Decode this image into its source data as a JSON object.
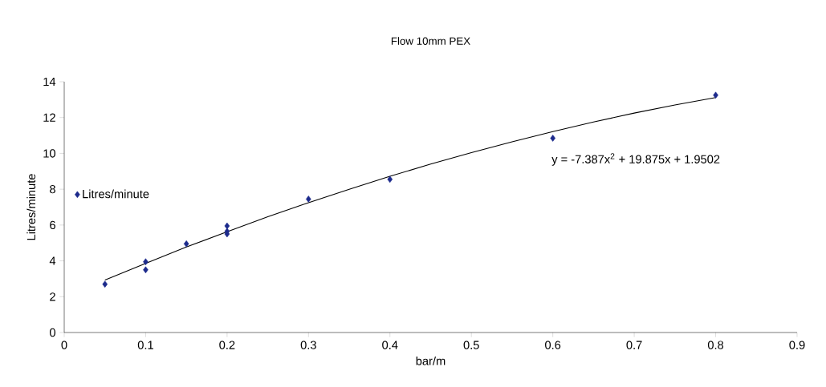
{
  "chart_data": {
    "type": "scatter",
    "title": "Flow 10mm PEX",
    "xlabel": "bar/m",
    "ylabel": "Litres/minute",
    "series": [
      {
        "name": "Litres/minute",
        "marker": "diamond",
        "color": "#1c2a8c",
        "x": [
          0.05,
          0.1,
          0.1,
          0.15,
          0.2,
          0.2,
          0.2,
          0.3,
          0.4,
          0.6,
          0.8
        ],
        "values": [
          2.7,
          3.95,
          3.5,
          4.95,
          5.95,
          5.65,
          5.5,
          7.45,
          8.55,
          10.85,
          13.25
        ]
      },
      {
        "type": "line",
        "color": "#000000",
        "x": [
          0.05,
          0.1,
          0.15,
          0.2,
          0.25,
          0.3,
          0.35,
          0.4,
          0.45,
          0.5,
          0.55,
          0.6,
          0.65,
          0.7,
          0.75,
          0.8
        ],
        "values": [
          2.93,
          3.86,
          4.77,
          5.63,
          6.46,
          7.25,
          8.0,
          8.72,
          9.4,
          10.04,
          10.65,
          11.22,
          11.75,
          12.25,
          12.7,
          13.12
        ]
      }
    ],
    "annotations": [
      "y = -7.387x$^{2}$ + 19.875x + 1.9502"
    ],
    "xlim": [
      0,
      0.9
    ],
    "ylim": [
      0,
      14
    ],
    "xticks": [
      0,
      0.1,
      0.2,
      0.3,
      0.4,
      0.5,
      0.6,
      0.7,
      0.8,
      0.9
    ],
    "yticks": [
      0,
      2,
      4,
      6,
      8,
      10,
      12,
      14
    ],
    "legend": "left",
    "grid": false
  }
}
